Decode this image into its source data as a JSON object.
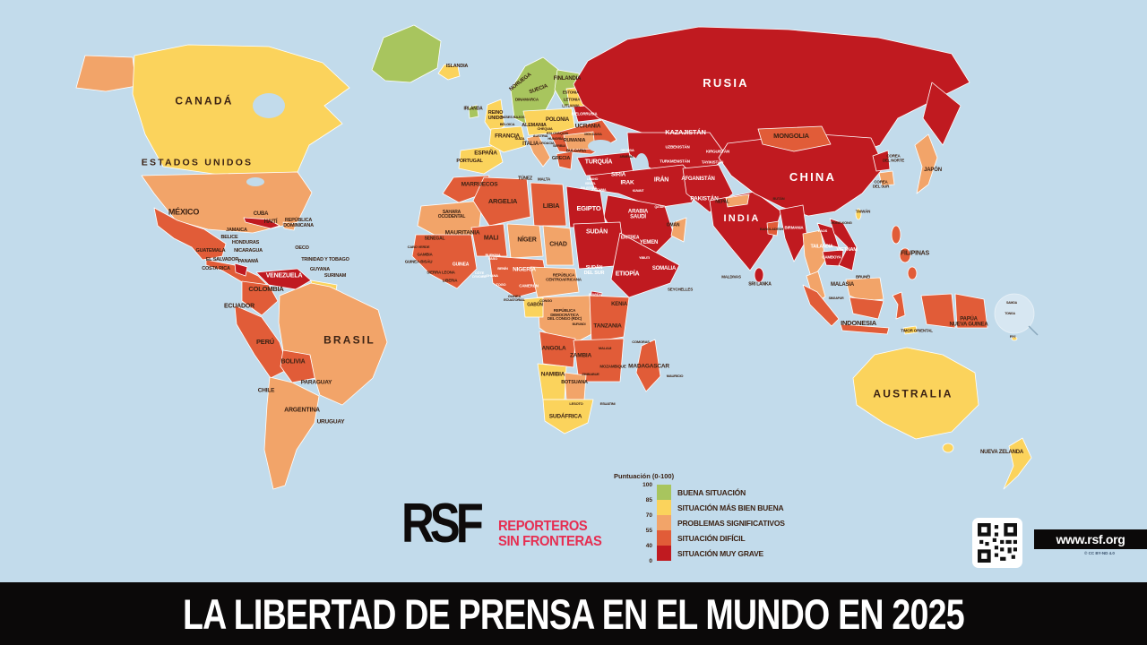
{
  "palette": {
    "ocean": "#c2dbeb",
    "good": "#a8c55e",
    "fair": "#fbd35c",
    "significant": "#f2a469",
    "difficult": "#e15c38",
    "verygrave": "#c01a20",
    "label_dark": "#3b2214",
    "label_light": "#ffffff",
    "bar_black": "#0b0909",
    "rsf_red": "#e62e51"
  },
  "title_bar": {
    "text": "LA LIBERTAD DE PRENSA EN EL MUNDO EN 2025"
  },
  "branding": {
    "logo_letters": "RSF",
    "logo_line1": "REPORTEROS",
    "logo_line2": "SIN FRONTERAS",
    "url": "www.rsf.org",
    "license": "© CC BY-ND 4.0"
  },
  "legend": {
    "title": "Puntuación (0-100)",
    "ticks": [
      "100",
      "85",
      "70",
      "55",
      "40",
      "0"
    ],
    "items": [
      {
        "label": "BUENA SITUACIÓN",
        "color_key": "good"
      },
      {
        "label": "SITUACIÓN MÁS BIEN BUENA",
        "color_key": "fair"
      },
      {
        "label": "PROBLEMAS SIGNIFICATIVOS",
        "color_key": "significant"
      },
      {
        "label": "SITUACIÓN DIFÍCIL",
        "color_key": "difficult"
      },
      {
        "label": "SITUACIÓN MUY GRAVE",
        "color_key": "verygrave"
      }
    ]
  },
  "map": {
    "labels": [
      [
        "CANADÁ",
        228,
        113,
        12
      ],
      [
        "ESTADOS UNIDOS",
        220,
        182,
        10.5
      ],
      [
        "MÉXICO",
        205,
        237,
        9
      ],
      [
        "CUBA",
        291,
        239,
        6
      ],
      [
        "HAITÍ",
        302,
        248,
        6
      ],
      [
        "REPÚBLICA\nDOMINICANA",
        333,
        250,
        5.5
      ],
      [
        "JAMAICA",
        264,
        258,
        5.5
      ],
      [
        "BELICE",
        256,
        266,
        5.5
      ],
      [
        "HONDURAS",
        274,
        272,
        5.5
      ],
      [
        "GUATEMALA",
        235,
        281,
        5.5
      ],
      [
        "NICARAGUA",
        277,
        281,
        5.5
      ],
      [
        "EL SALVADOR",
        248,
        291,
        5.5
      ],
      [
        "PANAMÁ",
        277,
        293,
        5.5
      ],
      [
        "COSTA RICA",
        241,
        301,
        5.5
      ],
      [
        "OECO",
        337,
        278,
        5.5
      ],
      [
        "TRINIDAD Y TOBAGO",
        363,
        291,
        5.5
      ],
      [
        "GUYANA",
        357,
        302,
        5.5
      ],
      [
        "SURINAM",
        374,
        309,
        5.5
      ],
      [
        "VENEZUELA",
        317,
        308,
        7,
        "w"
      ],
      [
        "COLOMBIA",
        297,
        323,
        7.5
      ],
      [
        "ECUADOR",
        267,
        342,
        7
      ],
      [
        "PERÚ",
        296,
        382,
        7.5
      ],
      [
        "BOLIVIA",
        327,
        404,
        7
      ],
      [
        "BRASIL",
        390,
        380,
        12
      ],
      [
        "PARAGUAY",
        353,
        428,
        6.5
      ],
      [
        "CHILE",
        297,
        437,
        6.5
      ],
      [
        "ARGENTINA",
        337,
        458,
        7
      ],
      [
        "URUGUAY",
        369,
        472,
        6.5
      ],
      [
        "ISLANDIA",
        510,
        75,
        5.5
      ],
      [
        "NORUEGA",
        581,
        92,
        6,
        "d",
        -38
      ],
      [
        "SUECIA",
        601,
        100,
        6,
        "d",
        -20
      ],
      [
        "FINLANDIA",
        633,
        88,
        6
      ],
      [
        "IRLANDA",
        528,
        122,
        5
      ],
      [
        "REINO\nUNIDO",
        553,
        130,
        5.5
      ],
      [
        "DINAMARCA",
        588,
        112,
        4.5
      ],
      [
        "ESTONIA",
        637,
        104,
        4.5
      ],
      [
        "LETONIA",
        638,
        112,
        4.5
      ],
      [
        "LITUANIA",
        637,
        119,
        4.5
      ],
      [
        "ALEMANIA",
        596,
        141,
        5.5
      ],
      [
        "POLONIA",
        622,
        134,
        6
      ],
      [
        "BIELORRUSIA",
        652,
        128,
        4.5,
        "w"
      ],
      [
        "PAÍSES BAJOS",
        572,
        131,
        4
      ],
      [
        "BÉLGICA",
        566,
        139,
        4
      ],
      [
        "FRANCIA",
        566,
        153,
        6.5
      ],
      [
        "SUIZA",
        580,
        155,
        4
      ],
      [
        "CHEQUIA",
        608,
        144,
        4
      ],
      [
        "ESLOVAQUIA",
        622,
        149,
        4
      ],
      [
        "AUSTRIA",
        603,
        152,
        4
      ],
      [
        "HUNGRÍA",
        620,
        155,
        4
      ],
      [
        "UCRANIA",
        656,
        142,
        6.5
      ],
      [
        "MOLDAVIA",
        662,
        150,
        4
      ],
      [
        "RUMANIA",
        641,
        158,
        5.5
      ],
      [
        "CROACIA",
        610,
        160,
        4
      ],
      [
        "SERBIA",
        624,
        163,
        4
      ],
      [
        "BULGARIA",
        643,
        169,
        4.5
      ],
      [
        "ITALIA",
        592,
        161,
        6
      ],
      [
        "ESPAÑA",
        542,
        172,
        6.5
      ],
      [
        "PORTUGAL",
        524,
        181,
        5.5
      ],
      [
        "GRECIA",
        626,
        178,
        5.5
      ],
      [
        "MALTA",
        607,
        201,
        4.5
      ],
      [
        "TÚNEZ",
        586,
        200,
        5
      ],
      [
        "RUSIA",
        810,
        93,
        13,
        "w"
      ],
      [
        "KAZAJISTÁN",
        765,
        148,
        7.5,
        "w"
      ],
      [
        "MONGOLIA",
        883,
        152,
        7.5
      ],
      [
        "UZBEKISTÁN",
        756,
        165,
        4.5,
        "w"
      ],
      [
        "KIRGUISTÁN",
        801,
        170,
        4.5,
        "w"
      ],
      [
        "TURKMENISTÁN",
        753,
        181,
        4.5,
        "w"
      ],
      [
        "TAYIKISTÁN",
        795,
        182,
        4.5,
        "w"
      ],
      [
        "GEORGIA",
        700,
        169,
        3.5,
        "w"
      ],
      [
        "ARMENIA",
        699,
        176,
        3.5
      ],
      [
        "TURQUÍA",
        668,
        181,
        7,
        "w"
      ],
      [
        "SIRIA",
        690,
        196,
        6.5,
        "w"
      ],
      [
        "LÍBANO",
        661,
        201,
        3.5,
        "w"
      ],
      [
        "ISRAEL",
        659,
        206,
        3.5,
        "w"
      ],
      [
        "PALESTINA",
        657,
        211,
        3.5,
        "w"
      ],
      [
        "JORDANIA",
        668,
        213,
        3.5,
        "w"
      ],
      [
        "IRAK",
        700,
        205,
        6.5,
        "w"
      ],
      [
        "IRÁN",
        738,
        201,
        7,
        "w"
      ],
      [
        "AFGANISTÁN",
        779,
        200,
        6,
        "w"
      ],
      [
        "PAKISTÁN",
        786,
        223,
        6.5,
        "w"
      ],
      [
        "KUWAIT",
        712,
        214,
        3.5,
        "w"
      ],
      [
        "QATAR",
        736,
        232,
        3.5,
        "w"
      ],
      [
        "ARABIA\nSAUDÍ",
        712,
        240,
        6,
        "w"
      ],
      [
        "OMÁN",
        751,
        252,
        5
      ],
      [
        "YEMEN",
        724,
        271,
        6,
        "w"
      ],
      [
        "EGIPTO",
        657,
        233,
        7.5,
        "w"
      ],
      [
        "SUDÁN",
        666,
        259,
        7,
        "w"
      ],
      [
        "ERITREA",
        703,
        266,
        5,
        "w"
      ],
      [
        "YIBUTI",
        719,
        288,
        4,
        "w"
      ],
      [
        "ETIOPÍA",
        700,
        306,
        7,
        "w"
      ],
      [
        "SOMALIA",
        741,
        300,
        6,
        "w"
      ],
      [
        "SEYCHELLES",
        759,
        324,
        4.5
      ],
      [
        "MALDIVAS",
        816,
        310,
        4.5
      ],
      [
        "SRI LANKA",
        848,
        318,
        5
      ],
      [
        "INDIA",
        828,
        245,
        11,
        "w"
      ],
      [
        "NEPAL",
        806,
        226,
        5
      ],
      [
        "BUTÁN",
        869,
        222,
        4
      ],
      [
        "BANGLADESH",
        861,
        256,
        4
      ],
      [
        "BIRMANIA",
        886,
        255,
        4.5,
        "w"
      ],
      [
        "TAILANDIA",
        917,
        276,
        5,
        "w"
      ],
      [
        "LAOS",
        918,
        258,
        4,
        "w"
      ],
      [
        "CAMBOYA",
        928,
        288,
        4.5,
        "w"
      ],
      [
        "VIETNAM",
        945,
        280,
        5.5,
        "w"
      ],
      [
        "HONG KONG",
        939,
        249,
        4
      ],
      [
        "TAIWÁN",
        963,
        237,
        4.5
      ],
      [
        "CHINA",
        907,
        198,
        13,
        "w"
      ],
      [
        "COREA\nDEL NORTE",
        997,
        177,
        4.5
      ],
      [
        "COREA\nDEL SUR",
        983,
        206,
        4.5
      ],
      [
        "JAPÓN",
        1041,
        190,
        6
      ],
      [
        "FILIPINAS",
        1021,
        283,
        7
      ],
      [
        "MALASIA",
        940,
        318,
        6
      ],
      [
        "BRUNÉI",
        963,
        310,
        4.5
      ],
      [
        "SINGAPUR",
        933,
        334,
        3.5
      ],
      [
        "INDONESIA",
        958,
        361,
        7.5
      ],
      [
        "TIMOR ORIENTAL",
        1023,
        370,
        4.5
      ],
      [
        "PAPÚA\nNUEVA GUINEA",
        1081,
        360,
        6
      ],
      [
        "SAMOA",
        1129,
        339,
        3.5
      ],
      [
        "TONGA",
        1127,
        351,
        3.5
      ],
      [
        "FIYI",
        1130,
        376,
        4
      ],
      [
        "AUSTRALIA",
        1019,
        440,
        12
      ],
      [
        "NUEVA ZELANDA",
        1118,
        505,
        6
      ],
      [
        "MARRUECOS",
        535,
        207,
        6.5
      ],
      [
        "SAHARA\nOCCIDENTAL",
        504,
        240,
        5
      ],
      [
        "ARGELIA",
        561,
        225,
        7.5
      ],
      [
        "LIBIA",
        615,
        230,
        7.5
      ],
      [
        "MAURITANIA",
        516,
        261,
        6.5
      ],
      [
        "MALI",
        548,
        266,
        7
      ],
      [
        "NÍGER",
        588,
        268,
        7
      ],
      [
        "CHAD",
        623,
        273,
        7
      ],
      [
        "SENEGAL",
        485,
        267,
        5
      ],
      [
        "CABO VERDE",
        467,
        276,
        4
      ],
      [
        "GAMBIA",
        474,
        285,
        4.5
      ],
      [
        "GUINEA-BISÁU",
        467,
        293,
        4.5
      ],
      [
        "GUINEA",
        514,
        296,
        5,
        "w"
      ],
      [
        "SIERRA LEONA",
        492,
        305,
        4.5
      ],
      [
        "LIBERIA",
        502,
        314,
        4.5
      ],
      [
        "BURKINA\nFASO",
        550,
        287,
        4,
        "w"
      ],
      [
        "BENÍN",
        561,
        300,
        4,
        "w"
      ],
      [
        "CÔTE\nD'IVOIRE",
        535,
        307,
        4,
        "w"
      ],
      [
        "GHANA",
        549,
        308,
        4,
        "w"
      ],
      [
        "TOGO",
        559,
        318,
        4,
        "w"
      ],
      [
        "NIGERIA",
        585,
        302,
        6.5,
        "w"
      ],
      [
        "CAMERÚN",
        590,
        320,
        4.5,
        "w"
      ],
      [
        "GUINEA\nECUATORIAL",
        574,
        333,
        4
      ],
      [
        "GABÓN",
        597,
        341,
        5
      ],
      [
        "CONGO",
        609,
        336,
        4
      ],
      [
        "REPÚBLICA\nCENTROAFRICANA",
        629,
        310,
        4.5
      ],
      [
        "SUDÁN\nDEL SUR",
        663,
        303,
        5.5,
        "w"
      ],
      [
        "RUANDA",
        664,
        330,
        3.5,
        "w"
      ],
      [
        "BURUNDI",
        646,
        363,
        3.5
      ],
      [
        "REPÚBLICA\nDEMOCRÁTICA\nDEL CONGO (RDC)",
        630,
        352,
        4.5
      ],
      [
        "KENIA",
        691,
        340,
        6
      ],
      [
        "TANZANIA",
        678,
        365,
        6.5
      ],
      [
        "MALAUI",
        675,
        389,
        4
      ],
      [
        "ANGOLA",
        618,
        390,
        6.5
      ],
      [
        "ZAMBIA",
        648,
        398,
        6.5
      ],
      [
        "MOZAMBIQUE",
        684,
        410,
        4.5
      ],
      [
        "ZIMBABUE",
        659,
        418,
        4
      ],
      [
        "MADAGASCAR",
        724,
        410,
        6.5
      ],
      [
        "COMORAS",
        715,
        382,
        4
      ],
      [
        "MAURICIO",
        753,
        420,
        4
      ],
      [
        "NAMIBIA",
        617,
        419,
        6.5
      ],
      [
        "BOTSUANA",
        641,
        428,
        5.5
      ],
      [
        "LESOTO",
        643,
        451,
        4
      ],
      [
        "ESUATINI",
        678,
        451,
        4
      ],
      [
        "SUDÁFRICA",
        631,
        466,
        6.5
      ]
    ]
  }
}
